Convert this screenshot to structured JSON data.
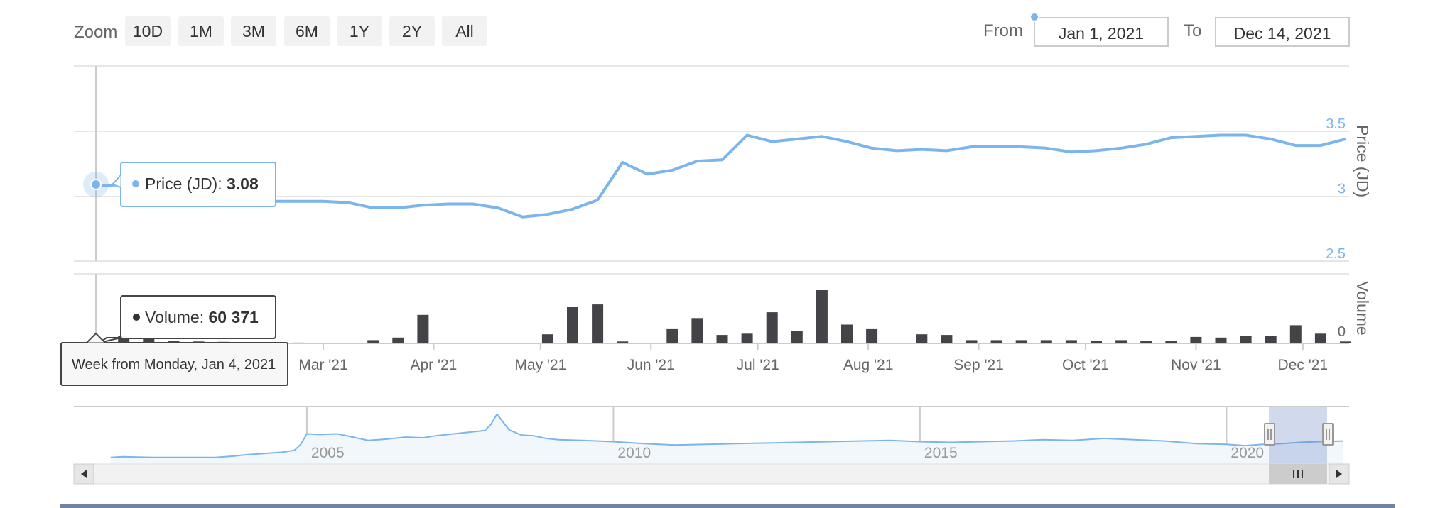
{
  "toolbar": {
    "zoom_label": "Zoom",
    "zoom_buttons": [
      "10D",
      "1M",
      "3M",
      "6M",
      "1Y",
      "2Y",
      "All"
    ],
    "from_label": "From",
    "from_value": "Jan 1, 2021",
    "to_label": "To",
    "to_value": "Dec 14, 2021"
  },
  "tooltip": {
    "price_label": "Price (JD): ",
    "price_value": "3.08",
    "volume_label": "Volume: ",
    "volume_value": "60 371",
    "date_text": "Week from Monday, Jan 4, 2021"
  },
  "colors": {
    "price_line": "#7cb5ec",
    "volume_bar": "#434348",
    "navigator_fill": "#f2f7fc",
    "navigator_mask": "#c7d2ea",
    "grid": "#e6e6e6",
    "bottom_bar": "#7182a4"
  },
  "chart_data": [
    {
      "type": "line",
      "series": [
        {
          "name": "Price (JD)",
          "x": [
            "2020-12-28",
            "2021-01-04",
            "2021-01-11",
            "2021-01-18",
            "2021-01-25",
            "2021-02-01",
            "2021-02-08",
            "2021-02-15",
            "2021-02-22",
            "2021-03-01",
            "2021-03-08",
            "2021-03-15",
            "2021-03-22",
            "2021-03-29",
            "2021-04-05",
            "2021-04-12",
            "2021-04-19",
            "2021-04-26",
            "2021-05-03",
            "2021-05-10",
            "2021-05-17",
            "2021-05-24",
            "2021-05-31",
            "2021-06-07",
            "2021-06-14",
            "2021-06-21",
            "2021-06-28",
            "2021-07-05",
            "2021-07-12",
            "2021-07-19",
            "2021-07-26",
            "2021-08-02",
            "2021-08-09",
            "2021-08-16",
            "2021-08-23",
            "2021-08-30",
            "2021-09-06",
            "2021-09-13",
            "2021-09-20",
            "2021-09-27",
            "2021-10-04",
            "2021-10-11",
            "2021-10-18",
            "2021-10-25",
            "2021-11-01",
            "2021-11-08",
            "2021-11-15",
            "2021-11-22",
            "2021-11-29",
            "2021-12-06",
            "2021-12-13"
          ],
          "y": [
            3.08,
            3.09,
            3.12,
            3.05,
            3.0,
            2.98,
            2.97,
            2.96,
            2.96,
            2.96,
            2.95,
            2.91,
            2.91,
            2.93,
            2.94,
            2.94,
            2.91,
            2.84,
            2.86,
            2.9,
            2.97,
            3.26,
            3.17,
            3.2,
            3.27,
            3.28,
            3.47,
            3.42,
            3.44,
            3.46,
            3.42,
            3.37,
            3.35,
            3.36,
            3.35,
            3.38,
            3.38,
            3.38,
            3.37,
            3.34,
            3.35,
            3.37,
            3.4,
            3.45,
            3.46,
            3.47,
            3.47,
            3.44,
            3.39,
            3.39,
            3.44
          ]
        }
      ],
      "ylabel": "Price (JD)",
      "ylim": [
        2.5,
        3.5
      ],
      "y_ticks": [
        "2.5",
        "3",
        "3.5"
      ],
      "x_ticks": [
        "Mar '21",
        "Apr '21",
        "May '21",
        "Jun '21",
        "Jul '21",
        "Aug '21",
        "Sep '21",
        "Oct '21",
        "Nov '21",
        "Dec '21"
      ],
      "grid": true
    },
    {
      "type": "bar",
      "series": [
        {
          "name": "Volume",
          "x": [
            "2021-01-04",
            "2021-01-11",
            "2021-01-18",
            "2021-01-25",
            "2021-02-01",
            "2021-02-08",
            "2021-02-15",
            "2021-02-22",
            "2021-03-01",
            "2021-03-08",
            "2021-03-15",
            "2021-03-22",
            "2021-03-29",
            "2021-04-05",
            "2021-04-12",
            "2021-04-19",
            "2021-04-26",
            "2021-05-03",
            "2021-05-10",
            "2021-05-17",
            "2021-05-24",
            "2021-05-31",
            "2021-06-07",
            "2021-06-14",
            "2021-06-21",
            "2021-06-28",
            "2021-07-05",
            "2021-07-12",
            "2021-07-19",
            "2021-07-26",
            "2021-08-02",
            "2021-08-09",
            "2021-08-16",
            "2021-08-23",
            "2021-08-30",
            "2021-09-06",
            "2021-09-13",
            "2021-09-20",
            "2021-09-27",
            "2021-10-04",
            "2021-10-11",
            "2021-10-18",
            "2021-10-25",
            "2021-11-01",
            "2021-11-08",
            "2021-11-15",
            "2021-11-22",
            "2021-11-29",
            "2021-12-06",
            "2021-12-13"
          ],
          "values": [
            60371,
            45000,
            20000,
            15000,
            12000,
            10000,
            8000,
            6000,
            5000,
            5000,
            25000,
            45000,
            220000,
            5000,
            3000,
            4000,
            5000,
            70000,
            280000,
            300000,
            15000,
            5000,
            110000,
            195000,
            65000,
            75000,
            240000,
            95000,
            410000,
            145000,
            110000,
            5000,
            70000,
            65000,
            25000,
            25000,
            25000,
            25000,
            25000,
            20000,
            25000,
            20000,
            20000,
            50000,
            45000,
            55000,
            60000,
            140000,
            75000,
            15000
          ]
        }
      ],
      "ylabel": "Volume",
      "y_ticks": [
        "0"
      ]
    },
    {
      "type": "area",
      "series": [
        {
          "name": "Navigator",
          "x": [
            2001.8,
            2002.0,
            2002.5,
            2003.0,
            2003.5,
            2003.8,
            2004.0,
            2004.3,
            2004.6,
            2004.8,
            2004.9,
            2005.0,
            2005.2,
            2005.5,
            2005.8,
            2006.0,
            2006.3,
            2006.6,
            2006.9,
            2007.1,
            2007.3,
            2007.6,
            2007.9,
            2008.0,
            2008.1,
            2008.3,
            2008.5,
            2008.7,
            2008.9,
            2009.1,
            2009.5,
            2010.0,
            2010.5,
            2011.0,
            2011.5,
            2012.0,
            2012.5,
            2013.0,
            2013.5,
            2014.0,
            2014.5,
            2015.0,
            2015.5,
            2016.0,
            2016.5,
            2017.0,
            2017.5,
            2018.0,
            2018.5,
            2019.0,
            2019.5,
            2020.0,
            2020.3,
            2020.6,
            2020.9,
            2021.2,
            2021.5,
            2021.9
          ],
          "y": [
            1.0,
            1.1,
            1.0,
            1.0,
            1.0,
            1.2,
            1.4,
            1.6,
            1.8,
            2.1,
            3.0,
            4.6,
            4.5,
            4.6,
            4.0,
            3.6,
            3.8,
            4.1,
            4.0,
            4.3,
            4.5,
            4.8,
            5.1,
            6.0,
            7.6,
            5.2,
            4.4,
            4.3,
            3.9,
            3.7,
            3.6,
            3.4,
            3.1,
            2.9,
            3.0,
            3.1,
            3.2,
            3.3,
            3.4,
            3.5,
            3.6,
            3.4,
            3.3,
            3.4,
            3.5,
            3.7,
            3.6,
            3.9,
            3.7,
            3.5,
            3.1,
            3.0,
            2.8,
            3.0,
            3.1,
            3.3,
            3.4,
            3.5
          ]
        }
      ],
      "x_ticks": [
        "2005",
        "2010",
        "2015",
        "2020"
      ],
      "selected_range": [
        "Jan 1, 2021",
        "Dec 14, 2021"
      ]
    }
  ]
}
